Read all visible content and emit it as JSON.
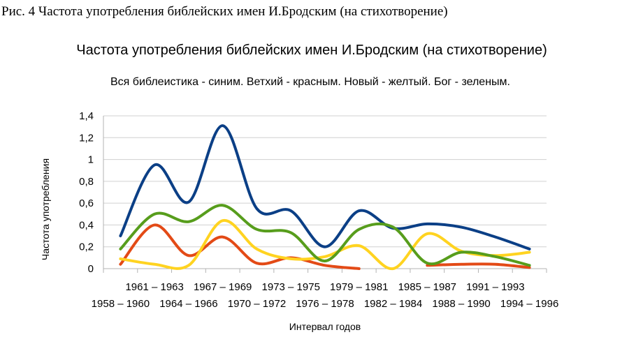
{
  "figure": {
    "caption": "Рис. 4 Частота употребления библейских имен И.Бродским (на стихотворение)"
  },
  "chart_data": {
    "type": "line",
    "title": "Частота употребления библейских имен И.Бродским (на стихотворение)",
    "subtitle": "Вся библеистика - синим. Ветхий - красным. Новый - желтый. Бог - зеленым.",
    "xlabel": "Интервал годов",
    "ylabel": "Частота употребления",
    "ylim": [
      0,
      1.4
    ],
    "y_ticks": [
      "0",
      "0,2",
      "0,4",
      "0,6",
      "0,8",
      "1",
      "1,2",
      "1,4"
    ],
    "grid": "horizontal",
    "smooth": true,
    "categories": [
      "1958 – 1960",
      "1961 – 1963",
      "1964 – 1966",
      "1967 – 1969",
      "1970 – 1972",
      "1973 – 1975",
      "1976 – 1978",
      "1979 – 1981",
      "1982 – 1984",
      "1985 – 1987",
      "1988 – 1990",
      "1991 – 1993",
      "1994 – 1996"
    ],
    "series": [
      {
        "color": "#0b3f86",
        "values": [
          0.3,
          0.95,
          0.61,
          1.31,
          0.55,
          0.53,
          0.2,
          0.53,
          0.37,
          0.41,
          0.38,
          0.29,
          0.18
        ]
      },
      {
        "color": "#e34a16",
        "values": [
          0.04,
          0.4,
          0.12,
          0.29,
          0.05,
          0.1,
          0.03,
          0.0,
          null,
          0.03,
          0.04,
          0.04,
          0.01
        ]
      },
      {
        "color": "#ffd320",
        "values": [
          0.09,
          0.04,
          0.03,
          0.44,
          0.18,
          0.09,
          0.11,
          0.21,
          0.0,
          0.32,
          0.16,
          0.12,
          0.15
        ]
      },
      {
        "color": "#579d1c",
        "values": [
          0.18,
          0.5,
          0.43,
          0.58,
          0.36,
          0.33,
          0.07,
          0.36,
          0.38,
          0.05,
          0.15,
          0.11,
          0.03
        ]
      }
    ]
  }
}
